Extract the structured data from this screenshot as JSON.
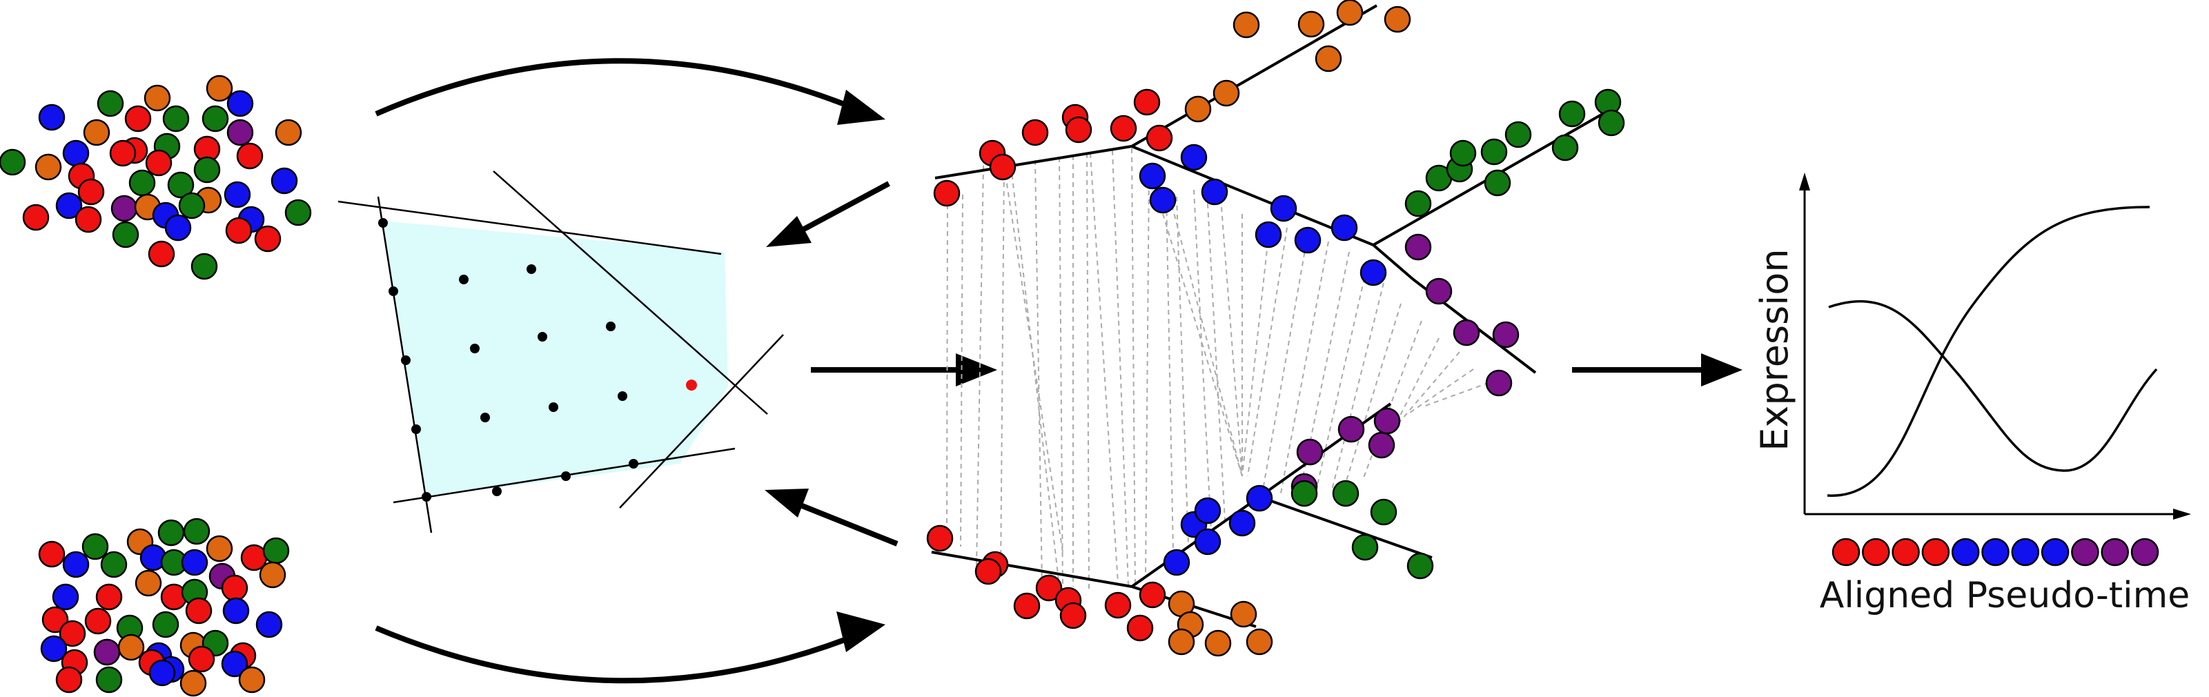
{
  "colors": {
    "red": "#ee1111",
    "blue": "#1111ee",
    "green": "#117711",
    "orange": "#dd6611",
    "purple": "#7a1188",
    "polygon_fill": "#dcfbfb",
    "line": "#000000",
    "dashed": "#aaaaaa",
    "highlight_point": "#ee1111"
  },
  "expression_plot": {
    "ylabel": "Expression",
    "xlabel": "Aligned Pseudo-time",
    "pseudotime_order": [
      "red",
      "red",
      "red",
      "red",
      "blue",
      "blue",
      "blue",
      "blue",
      "purple",
      "purple",
      "purple"
    ]
  }
}
